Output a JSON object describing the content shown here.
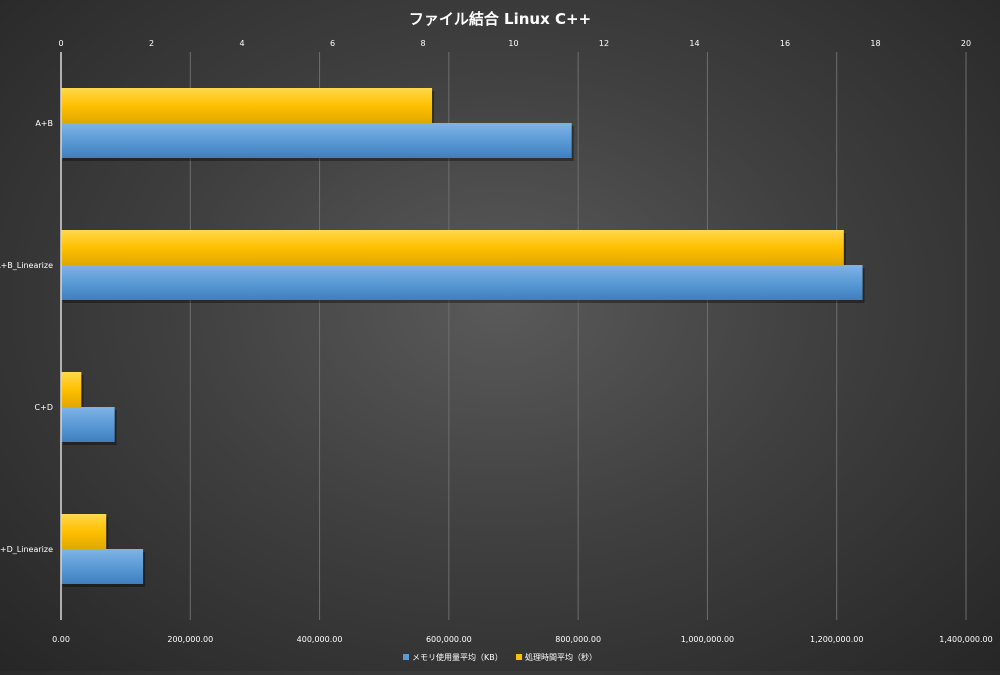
{
  "chart_data": {
    "type": "bar",
    "orientation": "horizontal",
    "title": "ファイル結合 Linux C++",
    "categories": [
      "A+B",
      "A+B_Linearize",
      "C+D",
      "C+D_Linearize"
    ],
    "series": [
      {
        "name": "メモリ使用量平均（KB）",
        "axis": "bottom",
        "color": "#5b9bd5",
        "values": [
          790000,
          1240000,
          83000,
          127000
        ]
      },
      {
        "name": "処理時間平均（秒）",
        "axis": "top",
        "color": "#ffc000",
        "values": [
          8.2,
          17.3,
          0.45,
          1.0
        ]
      }
    ],
    "bottom_axis": {
      "ticks": [
        "0.00",
        "200,000.00",
        "400,000.00",
        "600,000.00",
        "800,000.00",
        "1,000,000.00",
        "1,200,000.00",
        "1,400,000.00"
      ],
      "range": [
        0,
        1400000
      ]
    },
    "top_axis": {
      "ticks": [
        "0",
        "2",
        "4",
        "6",
        "8",
        "10",
        "12",
        "14",
        "16",
        "18",
        "20"
      ],
      "range": [
        0,
        20
      ]
    },
    "gridlines": true,
    "legend_position": "bottom"
  }
}
